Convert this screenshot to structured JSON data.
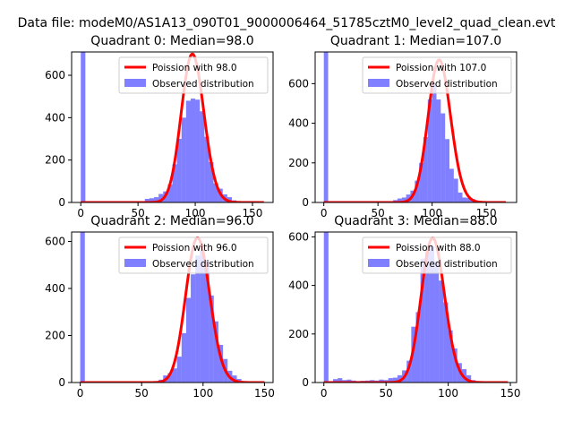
{
  "suptitle": "Data file: modeM0/AS1A13_090T01_9000006464_51785cztM0_level2_quad_clean.evt",
  "colors": {
    "histogram": "#0000ff",
    "model": "#ff0000"
  },
  "chart_data": [
    {
      "type": "bar",
      "title": "Quadrant 0: Median=98.0",
      "legend": {
        "placement": "upper-right",
        "entries": [
          "Poission with 98.0",
          "Observed distribution"
        ]
      },
      "xlim": [
        -8,
        168
      ],
      "ylim": [
        0,
        710
      ],
      "xticks": [
        0,
        50,
        100,
        150
      ],
      "yticks": [
        0,
        200,
        400,
        600
      ],
      "bins": {
        "start": 0,
        "width": 4
      },
      "values": [
        735,
        0,
        5,
        4,
        3,
        5,
        4,
        3,
        6,
        3,
        4,
        3,
        2,
        4,
        17,
        20,
        25,
        40,
        52,
        85,
        180,
        300,
        400,
        480,
        490,
        485,
        430,
        310,
        190,
        90,
        65,
        38,
        25,
        10,
        4,
        3,
        2,
        1,
        1,
        0
      ],
      "model": {
        "label": "Poission with 98.0",
        "mean": 98.0,
        "peak": 700
      }
    },
    {
      "type": "bar",
      "title": "Quadrant 1: Median=107.0",
      "legend": {
        "placement": "upper-right",
        "entries": [
          "Poission with 107.0",
          "Observed distribution"
        ]
      },
      "xlim": [
        -8,
        178
      ],
      "ylim": [
        0,
        760
      ],
      "xticks": [
        0,
        50,
        100,
        150
      ],
      "yticks": [
        0,
        200,
        400,
        600
      ],
      "bins": {
        "start": 0,
        "width": 4
      },
      "values": [
        800,
        0,
        4,
        3,
        5,
        3,
        4,
        3,
        4,
        5,
        4,
        3,
        4,
        3,
        6,
        5,
        12,
        20,
        25,
        40,
        60,
        110,
        200,
        330,
        520,
        600,
        520,
        450,
        320,
        170,
        120,
        50,
        25,
        22,
        17,
        8,
        4,
        2,
        1,
        0,
        0,
        0
      ],
      "model": {
        "label": "Poission with 107.0",
        "mean": 107.0,
        "peak": 720
      }
    },
    {
      "type": "bar",
      "title": "Quadrant 2: Median=96.0",
      "legend": {
        "placement": "upper-right",
        "entries": [
          "Poission with 96.0",
          "Observed distribution"
        ]
      },
      "xlim": [
        -7,
        157
      ],
      "ylim": [
        0,
        640
      ],
      "xticks": [
        0,
        50,
        100,
        150
      ],
      "yticks": [
        0,
        200,
        400,
        600
      ],
      "bins": {
        "start": 0,
        "width": 3.75
      },
      "values": [
        660,
        0,
        0,
        0,
        0,
        0,
        0,
        0,
        0,
        0,
        0,
        0,
        0,
        0,
        0,
        0,
        4,
        12,
        30,
        40,
        60,
        110,
        210,
        360,
        460,
        540,
        560,
        520,
        370,
        260,
        160,
        100,
        50,
        30,
        15,
        6,
        3,
        1,
        0,
        0
      ],
      "model": {
        "label": "Poission with 96.0",
        "mean": 96.0,
        "peak": 615
      }
    },
    {
      "type": "bar",
      "title": "Quadrant 3: Median=88.0",
      "legend": {
        "placement": "upper-right",
        "entries": [
          "Poission with 88.0",
          "Observed distribution"
        ]
      },
      "xlim": [
        -7,
        155
      ],
      "ylim": [
        0,
        620
      ],
      "xticks": [
        0,
        50,
        100,
        150
      ],
      "yticks": [
        0,
        200,
        400,
        600
      ],
      "bins": {
        "start": 0,
        "width": 3.7
      },
      "values": [
        640,
        0,
        14,
        18,
        10,
        12,
        8,
        6,
        7,
        8,
        10,
        8,
        12,
        10,
        18,
        20,
        30,
        50,
        90,
        230,
        290,
        510,
        540,
        560,
        500,
        420,
        330,
        215,
        140,
        80,
        55,
        30,
        10,
        5,
        2,
        1,
        0,
        0,
        0,
        0
      ],
      "model": {
        "label": "Poission with 88.0",
        "mean": 88.0,
        "peak": 595
      }
    }
  ]
}
